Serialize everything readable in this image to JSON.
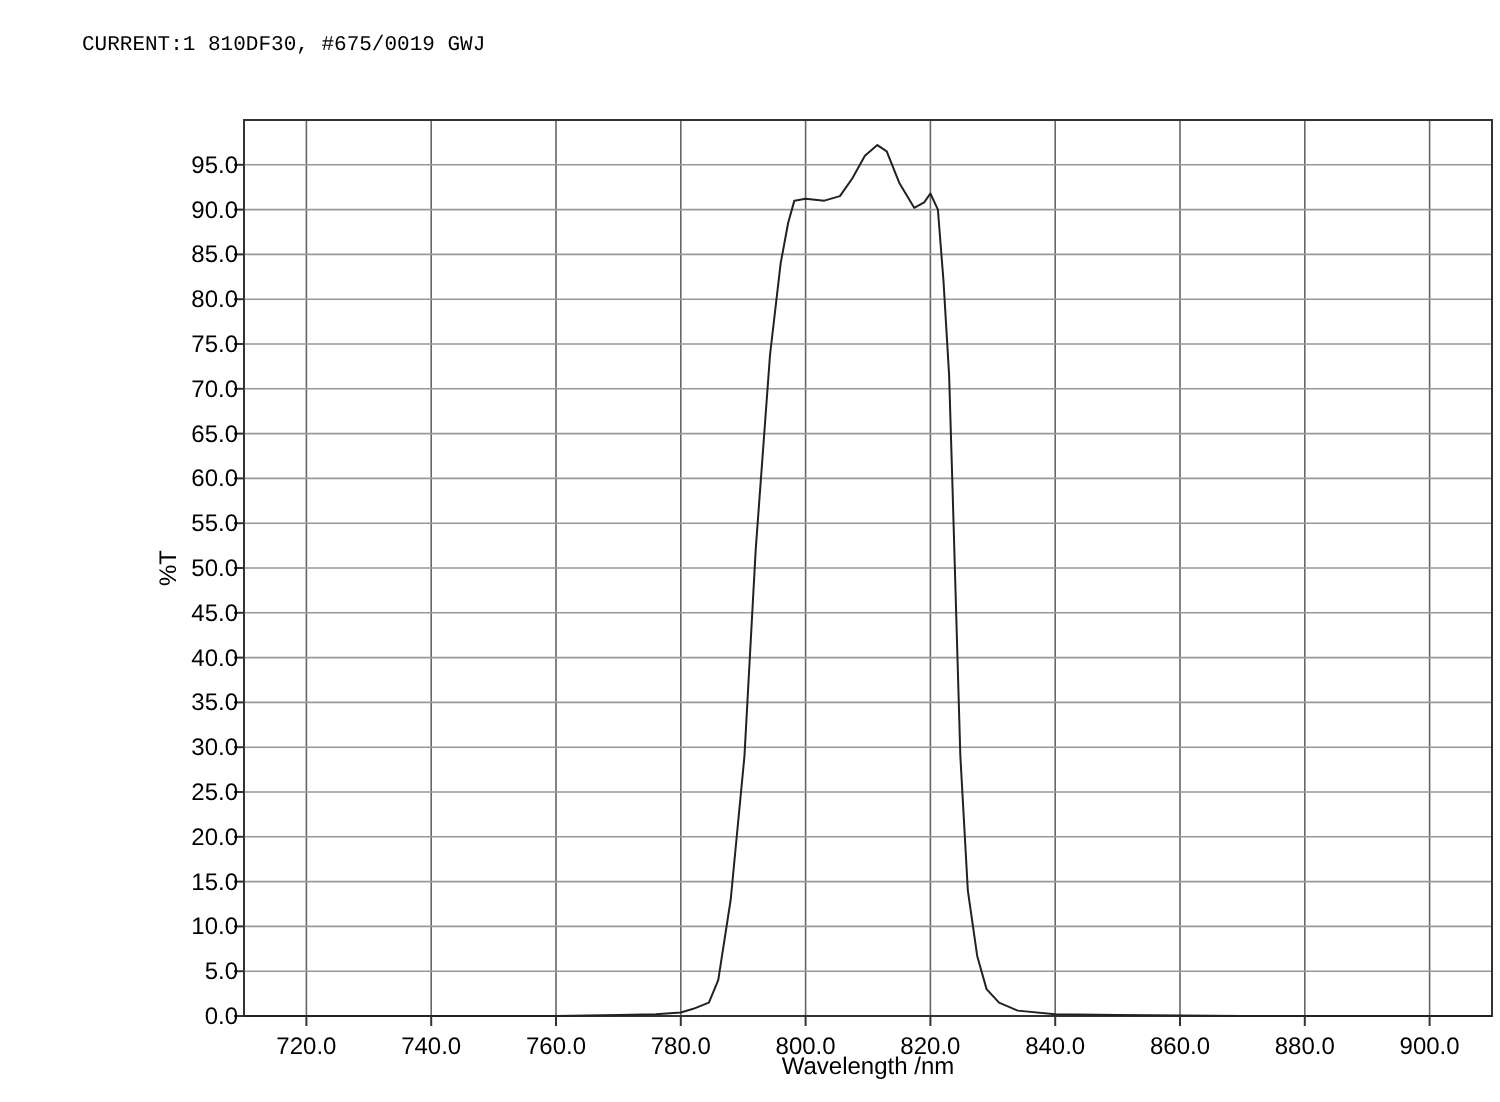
{
  "chart_data": {
    "type": "line",
    "title": "CURRENT:1 810DF30, #675/0019   GWJ",
    "xlabel": "Wavelength /nm",
    "ylabel": "%T",
    "xlim": [
      710,
      910
    ],
    "ylim": [
      0,
      100
    ],
    "xticks": [
      {
        "value": 720,
        "label": "720.0"
      },
      {
        "value": 740,
        "label": "740.0"
      },
      {
        "value": 760,
        "label": "760.0"
      },
      {
        "value": 780,
        "label": "780.0"
      },
      {
        "value": 800,
        "label": "800.0"
      },
      {
        "value": 820,
        "label": "820.0"
      },
      {
        "value": 840,
        "label": "840.0"
      },
      {
        "value": 860,
        "label": "860.0"
      },
      {
        "value": 880,
        "label": "880.0"
      },
      {
        "value": 900,
        "label": "900.0"
      }
    ],
    "yticks": [
      {
        "value": 0,
        "label": "0.0"
      },
      {
        "value": 5,
        "label": "5.0"
      },
      {
        "value": 10,
        "label": "10.0"
      },
      {
        "value": 15,
        "label": "15.0"
      },
      {
        "value": 20,
        "label": "20.0"
      },
      {
        "value": 25,
        "label": "25.0"
      },
      {
        "value": 30,
        "label": "30.0"
      },
      {
        "value": 35,
        "label": "35.0"
      },
      {
        "value": 40,
        "label": "40.0"
      },
      {
        "value": 45,
        "label": "45.0"
      },
      {
        "value": 50,
        "label": "50.0"
      },
      {
        "value": 55,
        "label": "55.0"
      },
      {
        "value": 60,
        "label": "60.0"
      },
      {
        "value": 65,
        "label": "65.0"
      },
      {
        "value": 70,
        "label": "70.0"
      },
      {
        "value": 75,
        "label": "75.0"
      },
      {
        "value": 80,
        "label": "80.0"
      },
      {
        "value": 85,
        "label": "85.0"
      },
      {
        "value": 90,
        "label": "90.0"
      },
      {
        "value": 95,
        "label": "95.0"
      }
    ],
    "grid": true,
    "marker": "none",
    "line_style": "solid",
    "series": [
      {
        "color": "#222222",
        "x": [
          710,
          740,
          760,
          770,
          776,
          780,
          782,
          784.5,
          786,
          788,
          790.2,
          792,
          794.3,
          796,
          797.2,
          798.2,
          800,
          803,
          805.5,
          807.5,
          809.5,
          811.5,
          813,
          815,
          817.4,
          819,
          820,
          821.2,
          822.1,
          823,
          823.5,
          824.8,
          826,
          827.5,
          829,
          831,
          834,
          840,
          850,
          870,
          910
        ],
        "values": [
          0,
          0,
          0,
          0.1,
          0.2,
          0.4,
          0.8,
          1.5,
          4,
          13,
          29,
          52,
          73.8,
          84,
          88.5,
          91,
          91.2,
          91,
          91.5,
          93.5,
          96,
          97.2,
          96.5,
          93,
          90.2,
          90.8,
          91.8,
          90,
          82,
          71.5,
          60,
          29,
          14,
          6.7,
          3,
          1.5,
          0.6,
          0.2,
          0.1,
          0,
          0
        ]
      }
    ]
  }
}
